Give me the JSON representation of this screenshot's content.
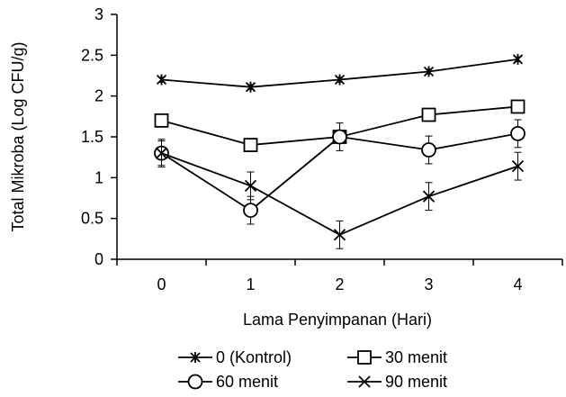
{
  "chart_data": {
    "type": "line",
    "title": "",
    "xlabel": "Lama Penyimpanan (Hari)",
    "ylabel": "Total Mikroba (Log CFU/g)",
    "x": [
      0,
      1,
      2,
      3,
      4
    ],
    "xticks": [
      "0",
      "1",
      "2",
      "3",
      "4"
    ],
    "xlim": [
      -0.5,
      4.5
    ],
    "ylim": [
      0,
      3
    ],
    "yticks": [
      "0",
      "0.5",
      "1",
      "1.5",
      "2",
      "2.5",
      "3"
    ],
    "grid": false,
    "legend_position": "bottom",
    "series": [
      {
        "name": "0 (Kontrol)",
        "marker": "asterisk",
        "values": [
          2.2,
          2.11,
          2.2,
          2.3,
          2.45
        ],
        "errors": [
          0.03,
          0.03,
          0.03,
          0.03,
          0.03
        ]
      },
      {
        "name": "30 menit",
        "marker": "square",
        "values": [
          1.7,
          1.4,
          1.5,
          1.77,
          1.87
        ],
        "errors": [
          0.06,
          0.06,
          0.06,
          0.06,
          0.06
        ]
      },
      {
        "name": "60 menit",
        "marker": "circle",
        "values": [
          1.3,
          0.6,
          1.5,
          1.34,
          1.54
        ],
        "errors": [
          0.15,
          0.17,
          0.17,
          0.17,
          0.17
        ]
      },
      {
        "name": "90 menit",
        "marker": "x",
        "values": [
          1.3,
          0.9,
          0.3,
          0.77,
          1.14
        ],
        "errors": [
          0.17,
          0.17,
          0.17,
          0.17,
          0.17
        ]
      }
    ]
  }
}
